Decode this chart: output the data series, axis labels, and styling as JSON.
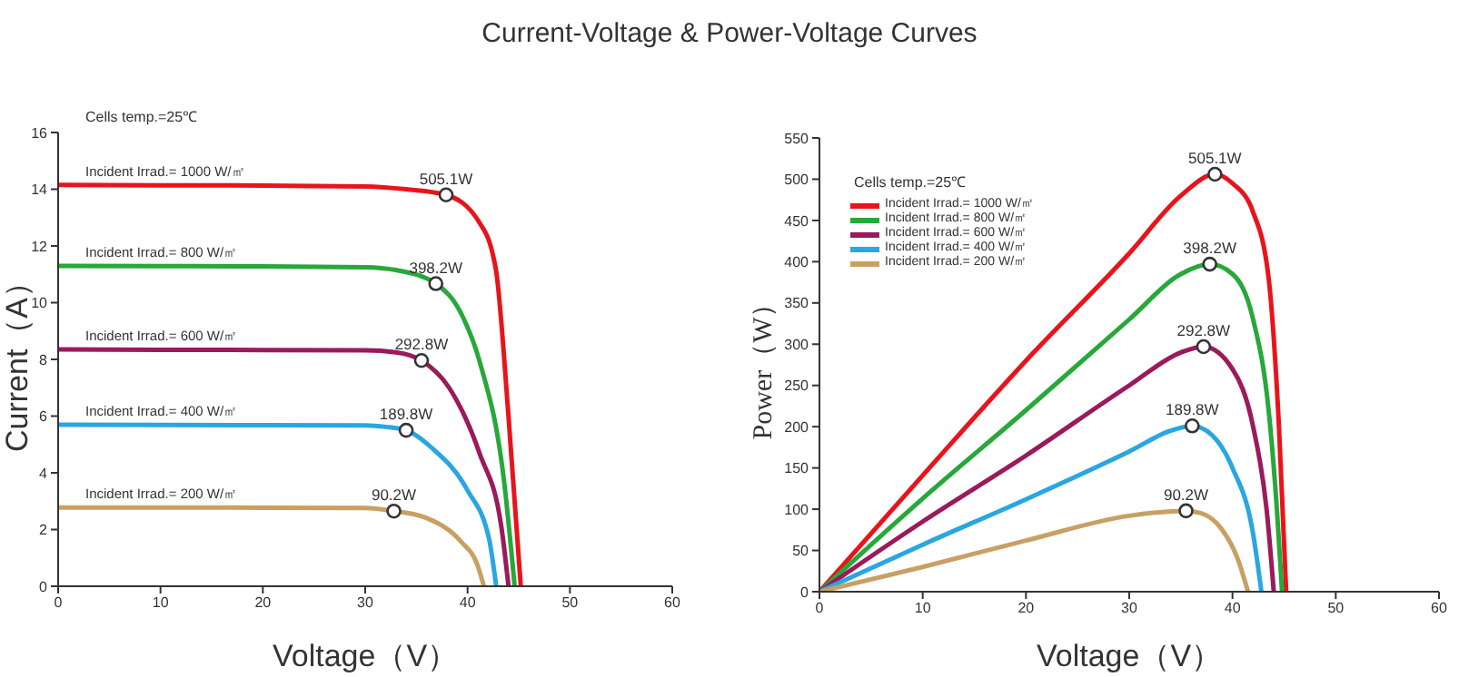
{
  "chart_data": [
    {
      "type": "line",
      "title": "Current-Voltage & Power-Voltage Curves",
      "xlabel": "Voltage（V）",
      "ylabel": "Current（A）",
      "xlim": [
        0,
        60
      ],
      "xticks": [
        0,
        10,
        20,
        30,
        40,
        50,
        60
      ],
      "ylim": [
        0,
        16
      ],
      "yticks": [
        0,
        2,
        4,
        6,
        8,
        10,
        12,
        14,
        16
      ],
      "grid": false,
      "legend": false,
      "line_style": "solid",
      "annotations": [
        "Cells temp.=25℃",
        {
          "text": "505.1W",
          "x": 37.9,
          "y": 13.8
        },
        {
          "text": "398.2W",
          "x": 36.9,
          "y": 10.67
        },
        {
          "text": "292.8W",
          "x": 35.5,
          "y": 7.96
        },
        {
          "text": "189.8W",
          "x": 34.0,
          "y": 5.5
        },
        {
          "text": "90.2W",
          "x": 32.8,
          "y": 2.65
        }
      ],
      "series": [
        {
          "name": "Incident Irrad.= 1000 W/㎡",
          "color": "#e8141c",
          "x": [
            0,
            10,
            20,
            30,
            34,
            37.9,
            41.2,
            42.4,
            42.8,
            44,
            45.2
          ],
          "values": [
            14.15,
            14.14,
            14.13,
            14.1,
            14.0,
            13.8,
            12.8,
            11.8,
            11.1,
            6,
            0
          ]
        },
        {
          "name": "Incident Irrad.= 800 W/㎡",
          "color": "#27a83a",
          "x": [
            0,
            10,
            20,
            30,
            33,
            36.9,
            39.4,
            41.2,
            43.6,
            44.6
          ],
          "values": [
            11.3,
            11.29,
            11.28,
            11.25,
            11.15,
            10.67,
            9.6,
            7.9,
            3.6,
            0
          ]
        },
        {
          "name": "Incident Irrad.= 600 W/㎡",
          "color": "#9b1a5c",
          "x": [
            0,
            10,
            20,
            30,
            33,
            35.5,
            38.2,
            41.2,
            43.3,
            44.0
          ],
          "values": [
            8.35,
            8.34,
            8.33,
            8.32,
            8.25,
            7.96,
            7.0,
            4.66,
            2.1,
            0
          ]
        },
        {
          "name": "Incident Irrad.= 400 W/㎡",
          "color": "#2aa6e0",
          "x": [
            0,
            10,
            20,
            30,
            32,
            34.0,
            36.5,
            40.0,
            42.1,
            42.8
          ],
          "values": [
            5.7,
            5.69,
            5.68,
            5.67,
            5.62,
            5.5,
            4.88,
            3.38,
            1.67,
            0
          ]
        },
        {
          "name": "Incident Irrad.= 200 W/㎡",
          "color": "#c8a064",
          "x": [
            0,
            10,
            20,
            30,
            32.8,
            35.9,
            39.4,
            40.9,
            41.6
          ],
          "values": [
            2.78,
            2.78,
            2.77,
            2.76,
            2.65,
            2.42,
            1.56,
            0.81,
            0
          ]
        },
        {
          "type": "scatter",
          "color": "#333333",
          "marker": "circle",
          "x": [
            37.9,
            36.9,
            35.5,
            34.0,
            32.8
          ],
          "values": [
            13.8,
            10.67,
            7.96,
            5.5,
            2.65
          ]
        }
      ]
    },
    {
      "type": "line",
      "xlabel": "Voltage（V）",
      "ylabel": "Power（W）",
      "xlim": [
        0,
        60
      ],
      "xticks": [
        0,
        10,
        20,
        30,
        40,
        50,
        60
      ],
      "ylim": [
        0,
        550
      ],
      "yticks": [
        0,
        50,
        100,
        150,
        200,
        250,
        300,
        350,
        400,
        450,
        500,
        550
      ],
      "grid": false,
      "legend": "top left",
      "line_style": "solid",
      "annotations": [
        "Cells temp.=25℃",
        {
          "text": "505.1W",
          "x": 38.3,
          "y": 506
        },
        {
          "text": "398.2W",
          "x": 37.8,
          "y": 397
        },
        {
          "text": "292.8W",
          "x": 37.2,
          "y": 297
        },
        {
          "text": "189.8W",
          "x": 36.1,
          "y": 201
        },
        {
          "text": "90.2W",
          "x": 35.5,
          "y": 98
        }
      ],
      "series": [
        {
          "name": "Incident Irrad.= 1000 W/㎡",
          "color": "#e8141c",
          "x": [
            0,
            10,
            20,
            30,
            35,
            38.3,
            40,
            42,
            43.5,
            44.5,
            45.2
          ],
          "values": [
            0,
            141,
            280,
            410,
            480,
            506,
            495,
            460,
            380,
            200,
            0
          ]
        },
        {
          "name": "Incident Irrad.= 800 W/㎡",
          "color": "#27a83a",
          "x": [
            0,
            10,
            20,
            30,
            35,
            37.8,
            40,
            42,
            43.5,
            44.3,
            44.8
          ],
          "values": [
            0,
            113,
            220,
            330,
            385,
            397,
            385,
            330,
            220,
            100,
            0
          ]
        },
        {
          "name": "Incident Irrad.= 600 W/㎡",
          "color": "#9b1a5c",
          "x": [
            0,
            10,
            20,
            30,
            35,
            37.2,
            40,
            42,
            43.3,
            44.0
          ],
          "values": [
            0,
            85,
            165,
            250,
            290,
            297,
            270,
            200,
            100,
            0
          ]
        },
        {
          "name": "Incident Irrad.= 400 W/㎡",
          "color": "#2aa6e0",
          "x": [
            0,
            10,
            20,
            30,
            34,
            36.1,
            38,
            40,
            42,
            42.8
          ],
          "values": [
            0,
            57,
            112,
            170,
            195,
            201,
            190,
            150,
            70,
            0
          ]
        },
        {
          "name": "Incident Irrad.= 200 W/㎡",
          "color": "#c8a064",
          "x": [
            0,
            10,
            20,
            30,
            35.5,
            37,
            39,
            40.5,
            41.5
          ],
          "values": [
            0,
            30,
            62,
            92,
            98,
            95,
            75,
            40,
            0
          ]
        },
        {
          "type": "scatter",
          "color": "#333333",
          "marker": "circle",
          "x": [
            38.3,
            37.8,
            37.2,
            36.1,
            35.5
          ],
          "values": [
            506,
            397,
            297,
            201,
            98
          ]
        }
      ]
    }
  ]
}
